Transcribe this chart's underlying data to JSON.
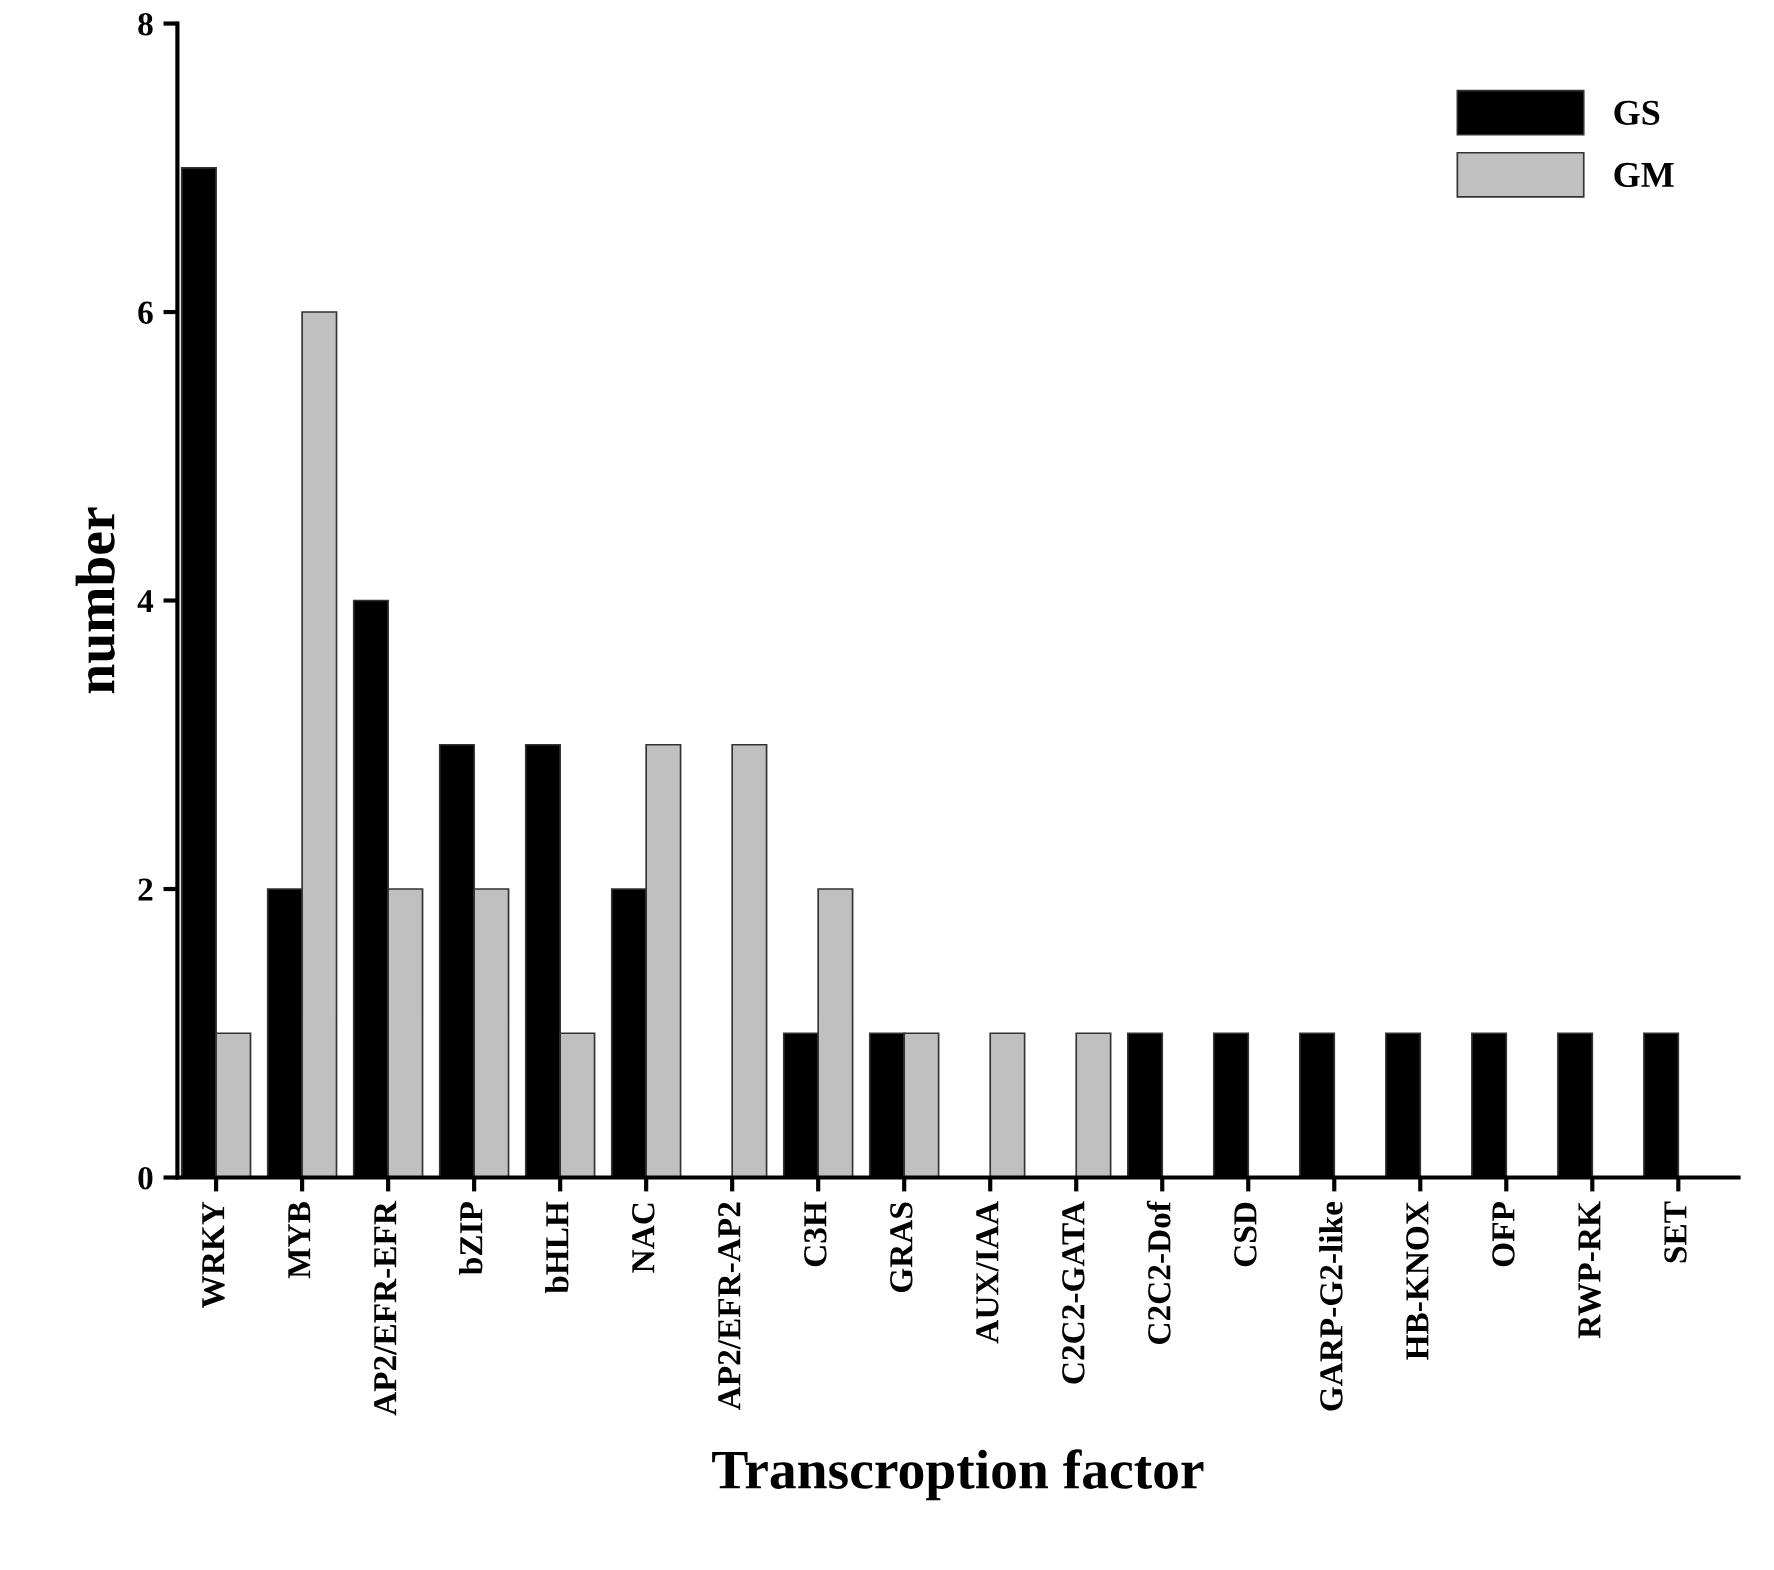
{
  "chart_data": {
    "type": "bar",
    "xlabel": "Transcroption factor",
    "ylabel": "number",
    "categories": [
      "WRKY",
      "MYB",
      "AP2/EFR-EFR",
      "bZIP",
      "bHLH",
      "NAC",
      "AP2/EFR-AP2",
      "C3H",
      "GRAS",
      "AUX/IAA",
      "C2C2-GATA",
      "C2C2-Dof",
      "CSD",
      "GARP-G2-like",
      "HB-KNOX",
      "OFP",
      "RWP-RK",
      "SET"
    ],
    "series": [
      {
        "name": "GS",
        "color": "#000000",
        "values": [
          7,
          2,
          4,
          3,
          3,
          2,
          0,
          1,
          1,
          0,
          0,
          1,
          1,
          1,
          1,
          1,
          1,
          1
        ]
      },
      {
        "name": "GM",
        "color": "#c0c0c0",
        "values": [
          1,
          6,
          2,
          2,
          1,
          3,
          3,
          2,
          1,
          1,
          1,
          0,
          0,
          0,
          0,
          0,
          0,
          0
        ]
      }
    ],
    "ylim": [
      0,
      8
    ],
    "yticks": [
      0,
      2,
      4,
      6,
      8
    ],
    "grid": false,
    "legend": "top right"
  }
}
